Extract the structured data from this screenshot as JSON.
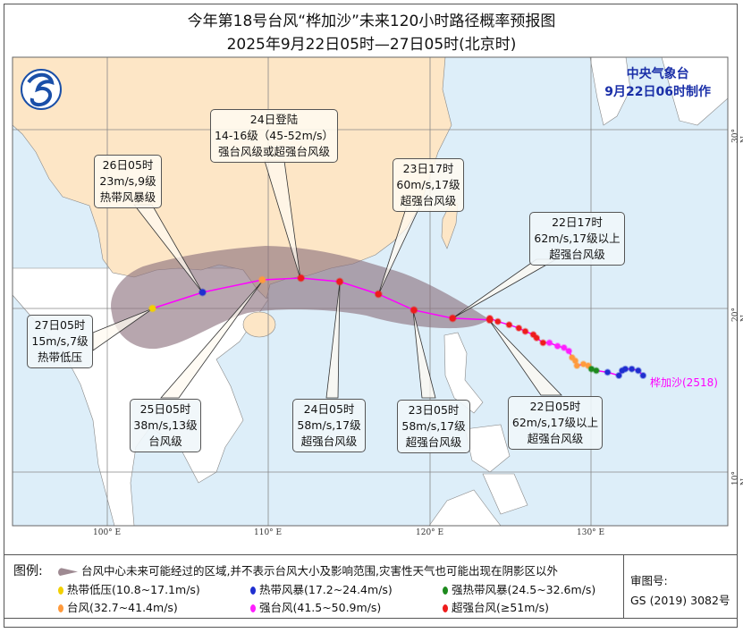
{
  "title": "今年第18号台风“桦加沙”未来120小时路径概率预报图",
  "subtitle": "2025年9月22日05时—27日05时(北京时)",
  "agency": {
    "name": "中央气象台",
    "issued": "9月22日06时制作"
  },
  "typhoon_label": "桦加沙(2518)",
  "axes": {
    "lon_labels": [
      "100° E",
      "110° E",
      "120° E",
      "130° E"
    ],
    "lat_labels": [
      "30° N",
      "20° N",
      "10° N"
    ]
  },
  "colors": {
    "sea": "#ddeef9",
    "china_land": "#fde6c6",
    "other_land": "#ffffff",
    "track_line": "#ff00ff",
    "cone": "#8b6f7c",
    "td": "#f2d000",
    "ts": "#1f2fd0",
    "sts": "#1e8a1e",
    "ty": "#ff9a3c",
    "sty": "#ff1fff",
    "super_ty": "#ee1c1c"
  },
  "forecast_track": [
    {
      "time": "22日05时",
      "lon": 123.7,
      "lat": 19.3,
      "cat": "super_ty"
    },
    {
      "time": "22日17时",
      "lon": 121.4,
      "lat": 19.4,
      "cat": "super_ty"
    },
    {
      "time": "23日05时",
      "lon": 119.0,
      "lat": 19.9,
      "cat": "super_ty"
    },
    {
      "time": "23日17时",
      "lon": 116.8,
      "lat": 20.8,
      "cat": "super_ty"
    },
    {
      "time": "24日05时",
      "lon": 114.4,
      "lat": 21.5,
      "cat": "super_ty"
    },
    {
      "time": "24日登陆",
      "lon": 112.0,
      "lat": 21.7,
      "cat": "super_ty"
    },
    {
      "time": "25日05时",
      "lon": 109.6,
      "lat": 21.6,
      "cat": "ty"
    },
    {
      "time": "26日05时",
      "lon": 105.9,
      "lat": 20.9,
      "cat": "ts"
    },
    {
      "time": "27日05时",
      "lon": 102.8,
      "lat": 20.0,
      "cat": "td"
    }
  ],
  "past_track": [
    {
      "lon": 123.7,
      "lat": 19.4,
      "cat": "super_ty"
    },
    {
      "lon": 124.2,
      "lat": 19.2,
      "cat": "super_ty"
    },
    {
      "lon": 124.9,
      "lat": 19.0,
      "cat": "super_ty"
    },
    {
      "lon": 125.5,
      "lat": 18.8,
      "cat": "super_ty"
    },
    {
      "lon": 125.9,
      "lat": 18.6,
      "cat": "super_ty"
    },
    {
      "lon": 126.4,
      "lat": 18.4,
      "cat": "super_ty"
    },
    {
      "lon": 126.6,
      "lat": 18.2,
      "cat": "super_ty"
    },
    {
      "lon": 127.0,
      "lat": 17.9,
      "cat": "super_ty"
    },
    {
      "lon": 127.4,
      "lat": 17.9,
      "cat": "sty"
    },
    {
      "lon": 127.9,
      "lat": 17.7,
      "cat": "sty"
    },
    {
      "lon": 128.3,
      "lat": 17.6,
      "cat": "sty"
    },
    {
      "lon": 128.6,
      "lat": 17.4,
      "cat": "sty"
    },
    {
      "lon": 128.8,
      "lat": 17.0,
      "cat": "ty"
    },
    {
      "lon": 129.0,
      "lat": 16.8,
      "cat": "ty"
    },
    {
      "lon": 129.1,
      "lat": 16.5,
      "cat": "ty"
    },
    {
      "lon": 129.5,
      "lat": 16.6,
      "cat": "ty"
    },
    {
      "lon": 129.8,
      "lat": 16.5,
      "cat": "ty"
    },
    {
      "lon": 130.0,
      "lat": 16.3,
      "cat": "sts"
    },
    {
      "lon": 130.3,
      "lat": 16.2,
      "cat": "sts"
    },
    {
      "lon": 131.0,
      "lat": 16.1,
      "cat": "ts"
    },
    {
      "lon": 131.7,
      "lat": 15.9,
      "cat": "ts"
    },
    {
      "lon": 131.9,
      "lat": 16.2,
      "cat": "ts"
    },
    {
      "lon": 132.1,
      "lat": 16.3,
      "cat": "ts"
    },
    {
      "lon": 132.5,
      "lat": 16.3,
      "cat": "ts"
    },
    {
      "lon": 132.9,
      "lat": 16.2,
      "cat": "ts"
    },
    {
      "lon": 133.2,
      "lat": 15.9,
      "cat": "ts"
    }
  ],
  "callouts": {
    "landfall": {
      "l1": "24日登陆",
      "l2": "14-16级（45-52m/s）",
      "l3": "强台风级或超强台风级"
    },
    "d26": {
      "l1": "26日05时",
      "l2": "23m/s,9级",
      "l3": "热带风暴级"
    },
    "d23_17": {
      "l1": "23日17时",
      "l2": "60m/s,17级",
      "l3": "超强台风级"
    },
    "d22_17": {
      "l1": "22日17时",
      "l2": "62m/s,17级以上",
      "l3": "超强台风级"
    },
    "d27": {
      "l1": "27日05时",
      "l2": "15m/s,7级",
      "l3": "热带低压"
    },
    "d25": {
      "l1": "25日05时",
      "l2": "38m/s,13级",
      "l3": "台风级"
    },
    "d24": {
      "l1": "24日05时",
      "l2": "58m/s,17级",
      "l3": "超强台风级"
    },
    "d23_05": {
      "l1": "23日05时",
      "l2": "58m/s,17级",
      "l3": "超强台风级"
    },
    "d22_05": {
      "l1": "22日05时",
      "l2": "62m/s,17级以上",
      "l3": "超强台风级"
    }
  },
  "legend": {
    "title": "图例:",
    "cone": "台风中心未来可能经过的区域,并不表示台风大小及影响范围,灾害性天气也可能出现在阴影区以外",
    "items": [
      {
        "label": "热带低压(10.8~17.1m/s)",
        "cat": "td"
      },
      {
        "label": "热带风暴(17.2~24.4m/s)",
        "cat": "ts"
      },
      {
        "label": "强热带风暴(24.5~32.6m/s)",
        "cat": "sts"
      },
      {
        "label": "台风(32.7~41.4m/s)",
        "cat": "ty"
      },
      {
        "label": "强台风(41.5~50.9m/s)",
        "cat": "sty"
      },
      {
        "label": "超强台风(≥51m/s)",
        "cat": "super_ty"
      }
    ],
    "review_label": "审图号:",
    "review_no": "GS (2019) 3082号"
  }
}
